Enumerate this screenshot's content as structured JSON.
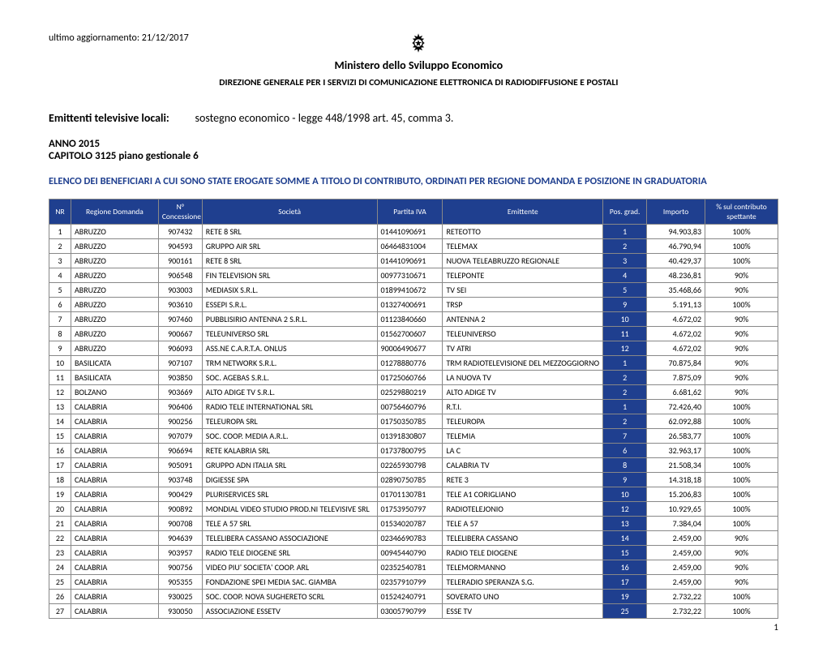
{
  "update_label": "ultimo aggiornamento: 21/12/2017",
  "ministry": "Ministero dello Sviluppo Economico",
  "direzione": "DIREZIONE GENERALE PER I SERVIZI DI COMUNICAZIONE ELETTRONICA DI RADIODIFFUSIONE E POSTALI",
  "title_bold": "Emittenti televisive locali:",
  "title_rest": "sostegno economico - legge 448/1998 art. 45, comma 3.",
  "anno": "ANNO 2015",
  "capitolo": "CAPITOLO 3125 piano gestionale 6",
  "elenco": "ELENCO DEI BENEFICIARI A CUI SONO  STATE EROGATE SOMME A TITOLO DI CONTRIBUTO, ORDINATI PER REGIONE DOMANDA E POSIZIONE IN GRADUATORIA",
  "page_num": "1",
  "columns": [
    "NR",
    "Regione Domanda",
    "N° Concessione",
    "Società",
    "Partita IVA",
    "Emittente",
    "Pos. grad.",
    "Importo",
    "% sul contributo spettante"
  ],
  "rows": [
    {
      "nr": "1",
      "reg": "ABRUZZO",
      "conc": "907432",
      "soc": "RETE 8 SRL",
      "piva": "01441090691",
      "emit": "RETEOTTO",
      "pos": "1",
      "imp": "94.903,83",
      "pct": "100%"
    },
    {
      "nr": "2",
      "reg": "ABRUZZO",
      "conc": "904593",
      "soc": "GRUPPO AIR SRL",
      "piva": "06464831004",
      "emit": "TELEMAX",
      "pos": "2",
      "imp": "46.790,94",
      "pct": "100%"
    },
    {
      "nr": "3",
      "reg": "ABRUZZO",
      "conc": "900161",
      "soc": "RETE 8 SRL",
      "piva": "01441090691",
      "emit": "NUOVA TELEABRUZZO REGIONALE",
      "pos": "3",
      "imp": "40.429,37",
      "pct": "100%"
    },
    {
      "nr": "4",
      "reg": "ABRUZZO",
      "conc": "906548",
      "soc": "FIN TELEVISION SRL",
      "piva": "00977310671",
      "emit": "TELEPONTE",
      "pos": "4",
      "imp": "48.236,81",
      "pct": "90%"
    },
    {
      "nr": "5",
      "reg": "ABRUZZO",
      "conc": "903003",
      "soc": "MEDIASIX S.R.L.",
      "piva": "01899410672",
      "emit": "TV SEI",
      "pos": "5",
      "imp": "35.468,66",
      "pct": "90%"
    },
    {
      "nr": "6",
      "reg": "ABRUZZO",
      "conc": "903610",
      "soc": "ESSEPI S.R.L.",
      "piva": "01327400691",
      "emit": "TRSP",
      "pos": "9",
      "imp": "5.191,13",
      "pct": "100%"
    },
    {
      "nr": "7",
      "reg": "ABRUZZO",
      "conc": "907460",
      "soc": "PUBBLISIRIO ANTENNA 2 S.R.L.",
      "piva": "01123840660",
      "emit": "ANTENNA 2",
      "pos": "10",
      "imp": "4.672,02",
      "pct": "90%"
    },
    {
      "nr": "8",
      "reg": "ABRUZZO",
      "conc": "900667",
      "soc": "TELEUNIVERSO SRL",
      "piva": "01562700607",
      "emit": "TELEUNIVERSO",
      "pos": "11",
      "imp": "4.672,02",
      "pct": "90%"
    },
    {
      "nr": "9",
      "reg": "ABRUZZO",
      "conc": "906093",
      "soc": "ASS.NE C.A.R.T.A. ONLUS",
      "piva": "90006490677",
      "emit": "TV ATRI",
      "pos": "12",
      "imp": "4.672,02",
      "pct": "90%"
    },
    {
      "nr": "10",
      "reg": "BASILICATA",
      "conc": "907107",
      "soc": "TRM NETWORK S.R.L.",
      "piva": "01278880776",
      "emit": "TRM RADIOTELEVISIONE DEL MEZZOGGIORNO",
      "pos": "1",
      "imp": "70.875,84",
      "pct": "90%"
    },
    {
      "nr": "11",
      "reg": "BASILICATA",
      "conc": "903850",
      "soc": "SOC. AGEBAS S.R.L.",
      "piva": "01725060766",
      "emit": "LA NUOVA TV",
      "pos": "2",
      "imp": "7.875,09",
      "pct": "90%"
    },
    {
      "nr": "12",
      "reg": "BOLZANO",
      "conc": "903669",
      "soc": "ALTO ADIGE TV S.R.L.",
      "piva": "02529880219",
      "emit": "ALTO ADIGE TV",
      "pos": "2",
      "imp": "6.681,62",
      "pct": "90%"
    },
    {
      "nr": "13",
      "reg": "CALABRIA",
      "conc": "906406",
      "soc": "RADIO TELE INTERNATIONAL SRL",
      "piva": "00756460796",
      "emit": "R.T.I.",
      "pos": "1",
      "imp": "72.426,40",
      "pct": "100%"
    },
    {
      "nr": "14",
      "reg": "CALABRIA",
      "conc": "900256",
      "soc": "TELEUROPA SRL",
      "piva": "01750350785",
      "emit": "TELEUROPA",
      "pos": "2",
      "imp": "62.092,88",
      "pct": "100%"
    },
    {
      "nr": "15",
      "reg": "CALABRIA",
      "conc": "907079",
      "soc": "SOC. COOP. MEDIA A.R.L.",
      "piva": "01391830807",
      "emit": "TELEMIA",
      "pos": "7",
      "imp": "26.583,77",
      "pct": "100%"
    },
    {
      "nr": "16",
      "reg": "CALABRIA",
      "conc": "906694",
      "soc": "RETE KALABRIA SRL",
      "piva": "01737800795",
      "emit": "LA C",
      "pos": "6",
      "imp": "32.963,17",
      "pct": "100%"
    },
    {
      "nr": "17",
      "reg": "CALABRIA",
      "conc": "905091",
      "soc": "GRUPPO ADN ITALIA SRL",
      "piva": "02265930798",
      "emit": "CALABRIA TV",
      "pos": "8",
      "imp": "21.508,34",
      "pct": "100%"
    },
    {
      "nr": "18",
      "reg": "CALABRIA",
      "conc": "903748",
      "soc": "DIGIESSE SPA",
      "piva": "02890750785",
      "emit": "RETE 3",
      "pos": "9",
      "imp": "14.318,18",
      "pct": "100%"
    },
    {
      "nr": "19",
      "reg": "CALABRIA",
      "conc": "900429",
      "soc": "PLURISERVICES SRL",
      "piva": "01701130781",
      "emit": "TELE A1 CORIGLIANO",
      "pos": "10",
      "imp": "15.206,83",
      "pct": "100%"
    },
    {
      "nr": "20",
      "reg": "CALABRIA",
      "conc": "900892",
      "soc": "MONDIAL VIDEO STUDIO PROD.NI TELEVISIVE SRL",
      "piva": "01753950797",
      "emit": "RADIOTELEJONIO",
      "pos": "12",
      "imp": "10.929,65",
      "pct": "100%"
    },
    {
      "nr": "21",
      "reg": "CALABRIA",
      "conc": "900708",
      "soc": "TELE A 57 SRL",
      "piva": "01534020787",
      "emit": "TELE A 57",
      "pos": "13",
      "imp": "7.384,04",
      "pct": "100%"
    },
    {
      "nr": "22",
      "reg": "CALABRIA",
      "conc": "904639",
      "soc": "TELELIBERA CASSANO ASSOCIAZIONE",
      "piva": "02346690783",
      "emit": "TELELIBERA CASSANO",
      "pos": "14",
      "imp": "2.459,00",
      "pct": "90%"
    },
    {
      "nr": "23",
      "reg": "CALABRIA",
      "conc": "903957",
      "soc": "RADIO TELE DIOGENE SRL",
      "piva": "00945440790",
      "emit": "RADIO TELE DIOGENE",
      "pos": "15",
      "imp": "2.459,00",
      "pct": "90%"
    },
    {
      "nr": "24",
      "reg": "CALABRIA",
      "conc": "900756",
      "soc": "VIDEO PIU' SOCIETA' COOP. ARL",
      "piva": "02352540781",
      "emit": "TELEMORMANNO",
      "pos": "16",
      "imp": "2.459,00",
      "pct": "90%"
    },
    {
      "nr": "25",
      "reg": "CALABRIA",
      "conc": "905355",
      "soc": "FONDAZIONE SPEI MEDIA SAC. GIAMBA",
      "piva": "02357910799",
      "emit": "TELERADIO SPERANZA S.G.",
      "pos": "17",
      "imp": "2.459,00",
      "pct": "90%"
    },
    {
      "nr": "26",
      "reg": "CALABRIA",
      "conc": "930025",
      "soc": "SOC. COOP. NOVA SUGHERETO SCRL",
      "piva": "01524240791",
      "emit": "SOVERATO UNO",
      "pos": "19",
      "imp": "2.732,22",
      "pct": "100%"
    },
    {
      "nr": "27",
      "reg": "CALABRIA",
      "conc": "930050",
      "soc": "ASSOCIAZIONE ESSETV",
      "piva": "03005790799",
      "emit": "ESSE TV",
      "pos": "25",
      "imp": "2.732,22",
      "pct": "100%"
    }
  ]
}
